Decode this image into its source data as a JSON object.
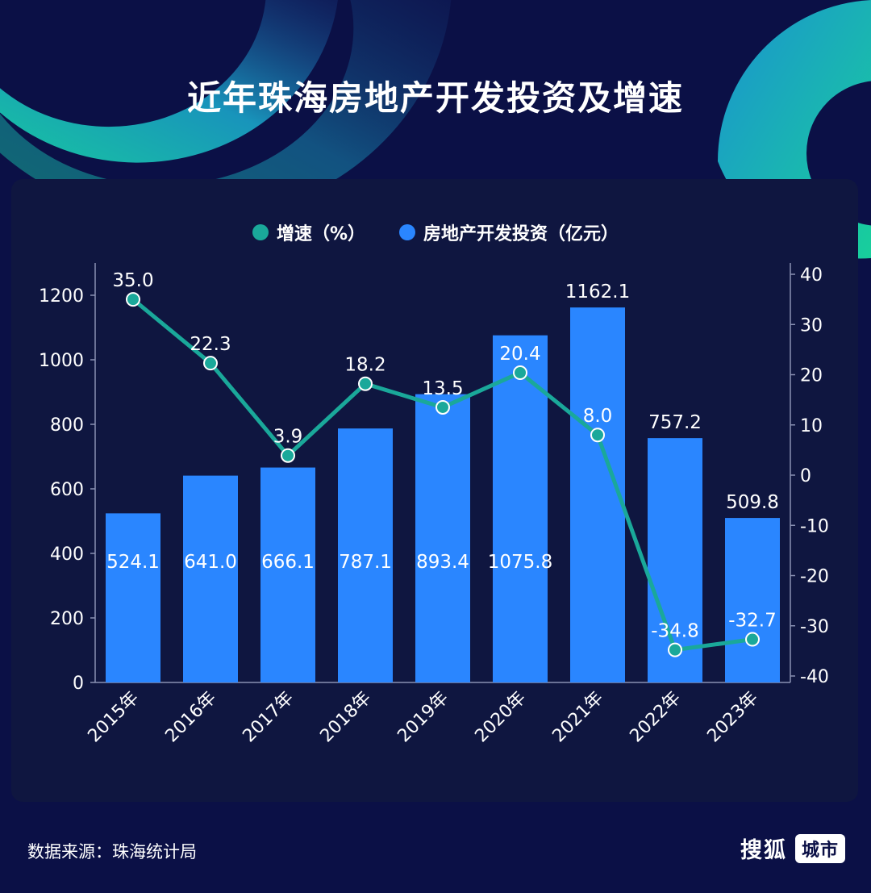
{
  "title": "近年珠海房地产开发投资及增速",
  "legend": {
    "growth_label": "增速（%）",
    "investment_label": "房地产开发投资（亿元）"
  },
  "colors": {
    "background": "#0b1046",
    "panel": "#0f1640",
    "bar": "#2a86ff",
    "line": "#1aa89a",
    "text": "#ffffff"
  },
  "chart_data": {
    "type": "bar",
    "categories": [
      "2015年",
      "2016年",
      "2017年",
      "2018年",
      "2019年",
      "2020年",
      "2021年",
      "2022年",
      "2023年"
    ],
    "series": [
      {
        "name": "房地产开发投资（亿元）",
        "type": "bar",
        "axis": "left",
        "values": [
          524.1,
          641.0,
          666.1,
          787.1,
          893.4,
          1075.8,
          1162.1,
          757.2,
          509.8
        ]
      },
      {
        "name": "增速（%）",
        "type": "line",
        "axis": "right",
        "values": [
          35.0,
          22.3,
          3.9,
          18.2,
          13.5,
          20.4,
          8.0,
          -34.8,
          -32.7
        ]
      }
    ],
    "bar_labels": [
      "524.1",
      "641.0",
      "666.1",
      "787.1",
      "893.4",
      "1075.8",
      "1162.1",
      "757.2",
      "509.8"
    ],
    "line_labels": [
      "35.0",
      "22.3",
      "3.9",
      "18.2",
      "13.5",
      "20.4",
      "8.0",
      "-34.8",
      "-32.7"
    ],
    "ylim_left": [
      0,
      1300
    ],
    "yticks_left": [
      0,
      200,
      400,
      600,
      800,
      1000,
      1200
    ],
    "ylim_right": [
      -40,
      40
    ],
    "yticks_right": [
      40,
      30,
      20,
      10,
      0,
      -10,
      -20,
      -30,
      -40
    ],
    "legend_position": "top-center",
    "grid": false
  },
  "footer": {
    "source": "数据来源：珠海统计局",
    "brand": "搜狐",
    "brand_badge": "城市"
  }
}
